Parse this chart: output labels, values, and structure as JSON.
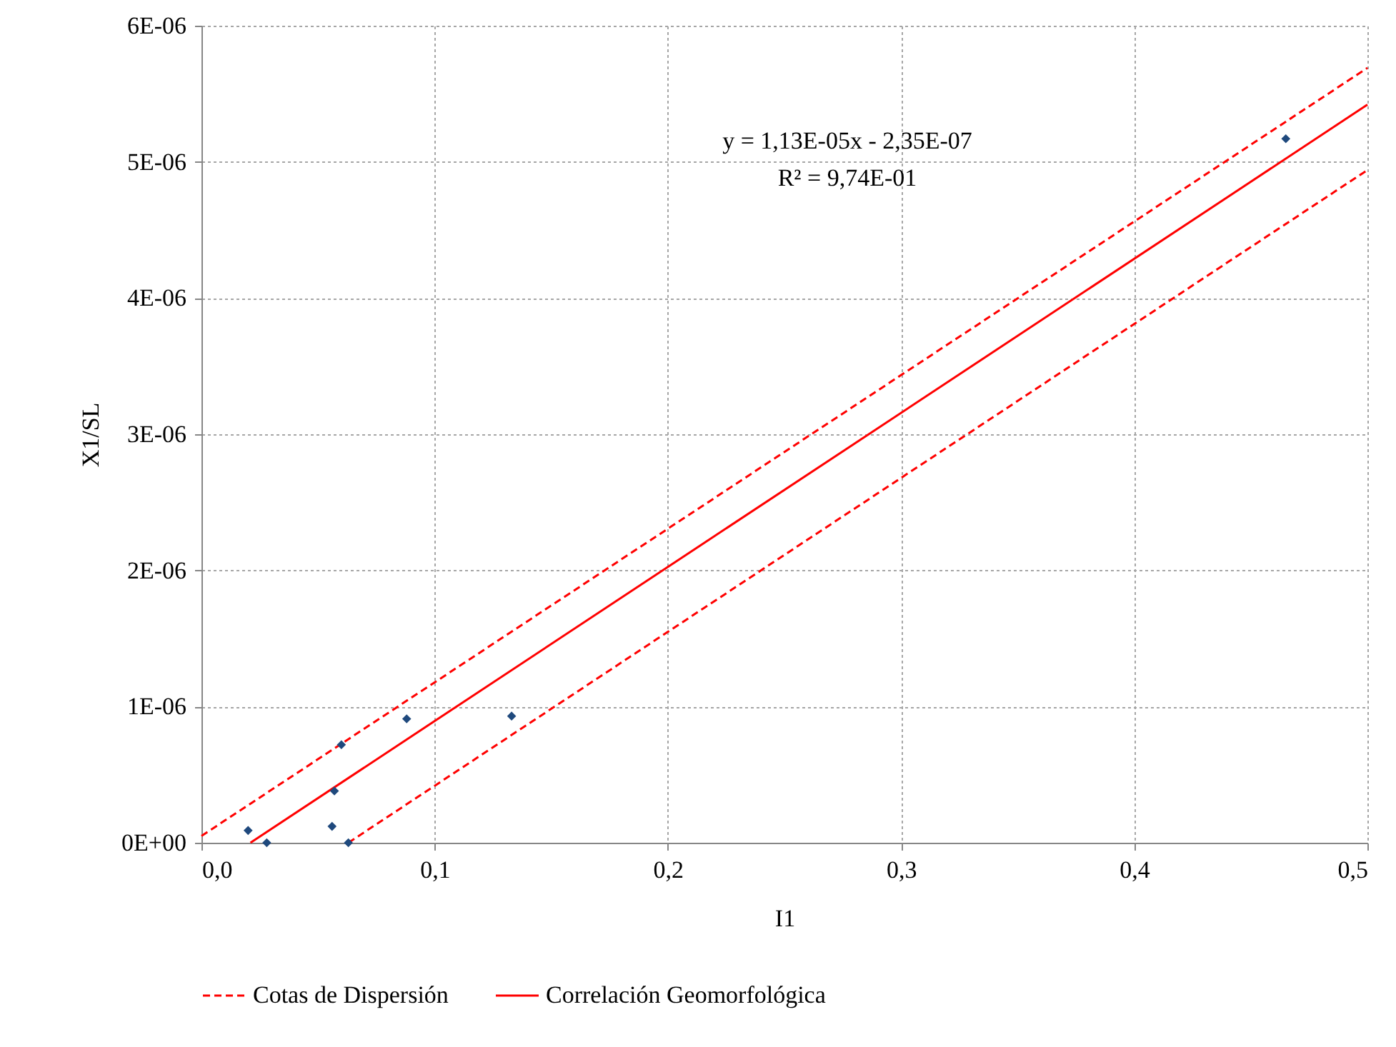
{
  "chart_data": {
    "type": "scatter",
    "xlabel": "I1",
    "ylabel": "X1/SL",
    "xlim": [
      0,
      0.5
    ],
    "ylim": [
      0,
      6e-06
    ],
    "xticks": [
      {
        "value": 0,
        "label": "0,0"
      },
      {
        "value": 0.1,
        "label": "0,1"
      },
      {
        "value": 0.2,
        "label": "0,2"
      },
      {
        "value": 0.3,
        "label": "0,3"
      },
      {
        "value": 0.4,
        "label": "0,4"
      },
      {
        "value": 0.5,
        "label": "0,5"
      }
    ],
    "yticks": [
      {
        "value": 0,
        "label": "0E+00"
      },
      {
        "value": 1e-06,
        "label": "1E-06"
      },
      {
        "value": 2e-06,
        "label": "2E-06"
      },
      {
        "value": 3e-06,
        "label": "3E-06"
      },
      {
        "value": 4e-06,
        "label": "4E-06"
      },
      {
        "value": 5e-06,
        "label": "5E-06"
      },
      {
        "value": 6e-06,
        "label": "6E-06"
      }
    ],
    "grid": true,
    "legend": "bottom",
    "annotations": [
      "y = 1,13E-05x - 2,35E-07",
      "R² = 9,74E-01"
    ],
    "series": [
      {
        "color": "#1f497d",
        "marker": "diamond",
        "x": [
          0.02,
          0.028,
          0.056,
          0.057,
          0.06,
          0.063,
          0.088,
          0.133,
          0.465
        ],
        "values": [
          9e-08,
          0,
          1.2e-07,
          3.8e-07,
          7.2e-07,
          0,
          9.1e-07,
          9.3e-07,
          5.17e-06
        ]
      },
      {
        "type": "line",
        "name": "Cotas de Dispersión",
        "color": "#ff0000",
        "line_style": "dashed",
        "marker": "none",
        "x": [
          0,
          0.5
        ],
        "values": [
          5e-08,
          5.69e-06
        ]
      },
      {
        "type": "line",
        "color": "#ff0000",
        "line_style": "dashed",
        "marker": "none",
        "x": [
          0.063,
          0.5
        ],
        "values": [
          0,
          4.94e-06
        ]
      },
      {
        "type": "line",
        "name": "Correlación Geomorfológica",
        "color": "#ff0000",
        "line_style": "solid",
        "marker": "none",
        "x": [
          0.021,
          0.5
        ],
        "values": [
          0,
          5.42e-06
        ]
      }
    ]
  }
}
